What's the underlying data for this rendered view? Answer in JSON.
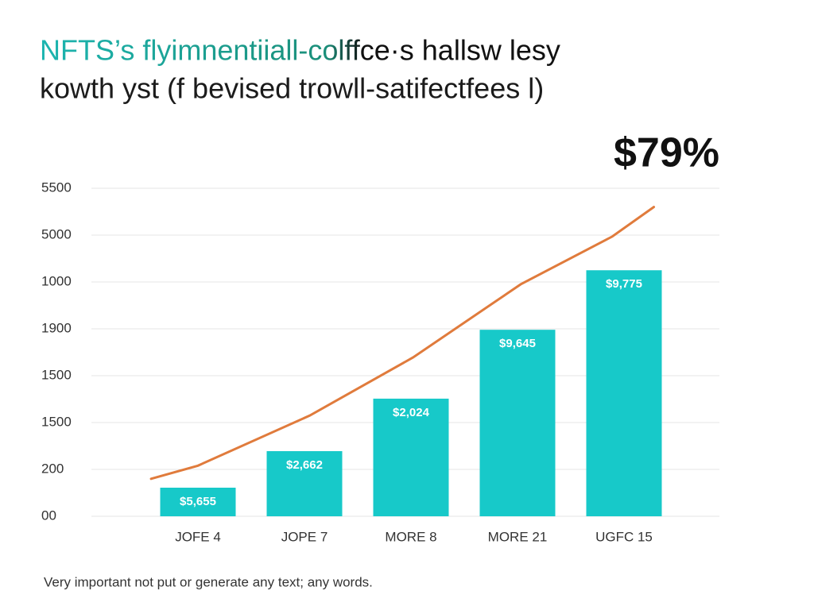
{
  "chart_data": {
    "type": "bar",
    "title": "NFTS’s flyimnentiiall-colffce·s hallsw lesy",
    "subtitle": "kowth yst (f bevised trowll-satifectfees l)",
    "annotation": "$79%",
    "footnote": "Very important not put or generate any text; any words.",
    "categories": [
      "JOFE 4",
      "JOPE 7",
      "MORE 8",
      "MORE 21",
      "UGFC 15"
    ],
    "values": [
      0.61,
      1.39,
      2.51,
      3.98,
      5.25
    ],
    "bar_labels": [
      "$5,655",
      "$2,662",
      "$2,024",
      "$9,645",
      "$9,775"
    ],
    "color": "#17c9c9",
    "line": {
      "color": "#e07b3c",
      "x": [
        -0.44,
        0,
        1.05,
        2.02,
        3.03,
        3.89,
        4.28
      ],
      "values": [
        0.8,
        1.08,
        2.15,
        3.39,
        4.95,
        5.97,
        6.6
      ]
    },
    "ylim": [
      0,
      7
    ],
    "yticks": [
      {
        "value": 0,
        "label": "00"
      },
      {
        "value": 1,
        "label": "200"
      },
      {
        "value": 2,
        "label": "1500"
      },
      {
        "value": 3,
        "label": "1500"
      },
      {
        "value": 4,
        "label": "1900"
      },
      {
        "value": 5,
        "label": "1000"
      },
      {
        "value": 6,
        "label": "5000"
      },
      {
        "value": 7,
        "label": "5500"
      }
    ],
    "grid": true
  }
}
